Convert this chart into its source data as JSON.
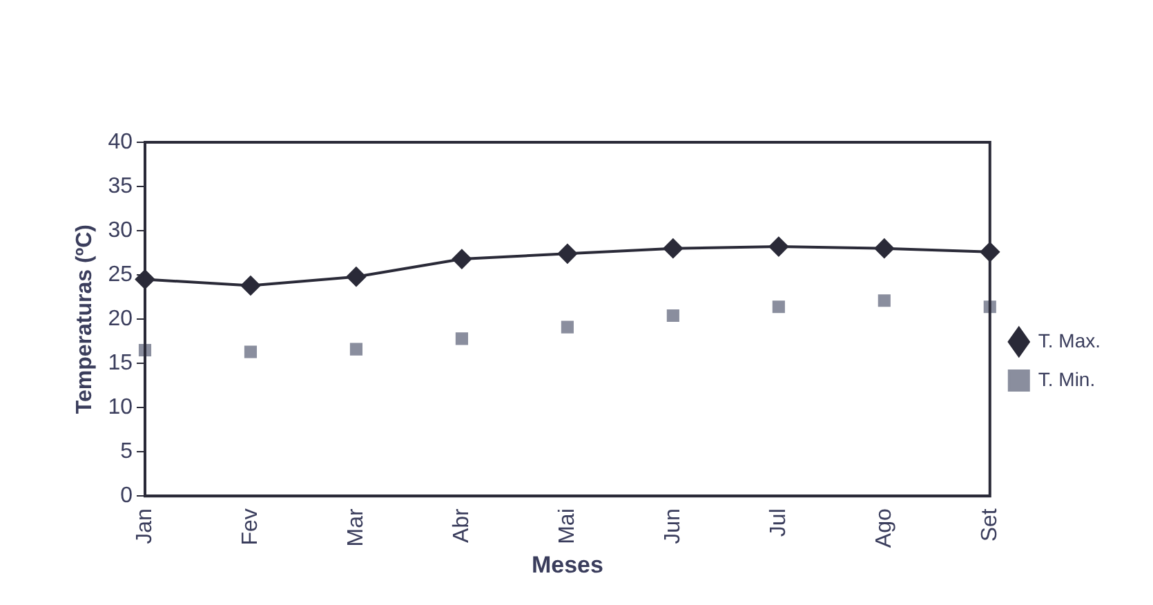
{
  "chart_data": {
    "type": "line",
    "xlabel": "Meses",
    "ylabel": "Temperaturas (ºC)",
    "categories": [
      "Jan",
      "Fev",
      "Mar",
      "Abr",
      "Mai",
      "Jun",
      "Jul",
      "Ago",
      "Set"
    ],
    "series": [
      {
        "name": "T. Max.",
        "type": "line",
        "marker": "diamond",
        "color": "#2a2a38",
        "values": [
          24.5,
          23.8,
          24.8,
          26.8,
          27.4,
          28.0,
          28.2,
          28.0,
          27.6
        ]
      },
      {
        "name": "T. Min.",
        "type": "scatter",
        "marker": "square",
        "color": "#8a8e9e",
        "values": [
          16.5,
          16.3,
          16.6,
          17.8,
          19.1,
          20.4,
          21.4,
          22.1,
          21.4
        ]
      }
    ],
    "ylim": [
      0,
      40
    ],
    "yticks": [
      0,
      5,
      10,
      15,
      20,
      25,
      30,
      35,
      40
    ],
    "grid": false,
    "legend": "right"
  }
}
